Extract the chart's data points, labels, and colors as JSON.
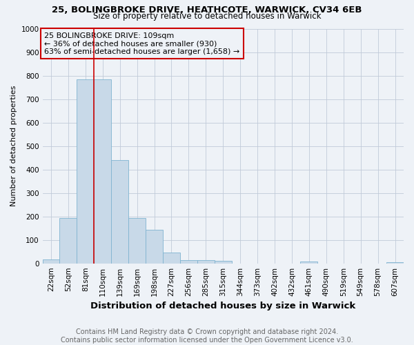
{
  "title1": "25, BOLINGBROKE DRIVE, HEATHCOTE, WARWICK, CV34 6EB",
  "title2": "Size of property relative to detached houses in Warwick",
  "xlabel": "Distribution of detached houses by size in Warwick",
  "ylabel": "Number of detached properties",
  "footer1": "Contains HM Land Registry data © Crown copyright and database right 2024.",
  "footer2": "Contains public sector information licensed under the Open Government Licence v3.0.",
  "annotation_line1": "25 BOLINGBROKE DRIVE: 109sqm",
  "annotation_line2": "← 36% of detached houses are smaller (930)",
  "annotation_line3": "63% of semi-detached houses are larger (1,658) →",
  "bar_labels": [
    "22sqm",
    "52sqm",
    "81sqm",
    "110sqm",
    "139sqm",
    "169sqm",
    "198sqm",
    "227sqm",
    "256sqm",
    "285sqm",
    "315sqm",
    "344sqm",
    "373sqm",
    "402sqm",
    "432sqm",
    "461sqm",
    "490sqm",
    "519sqm",
    "549sqm",
    "578sqm",
    "607sqm"
  ],
  "bar_values": [
    18,
    193,
    785,
    785,
    440,
    193,
    143,
    47,
    15,
    13,
    12,
    0,
    0,
    0,
    0,
    9,
    0,
    0,
    0,
    0,
    5
  ],
  "bar_color": "#c8d9e8",
  "bar_edge_color": "#7fb3d0",
  "red_line_index": 3,
  "ylim": [
    0,
    1000
  ],
  "yticks": [
    0,
    100,
    200,
    300,
    400,
    500,
    600,
    700,
    800,
    900,
    1000
  ],
  "background_color": "#eef2f7",
  "grid_color": "#c0cad8",
  "annotation_box_color": "#cc0000",
  "red_line_color": "#cc0000",
  "title1_fontsize": 9.5,
  "title2_fontsize": 8.5,
  "axis_label_fontsize": 8.0,
  "tick_fontsize": 7.5,
  "footer_fontsize": 7.0,
  "annotation_fontsize": 8.0
}
